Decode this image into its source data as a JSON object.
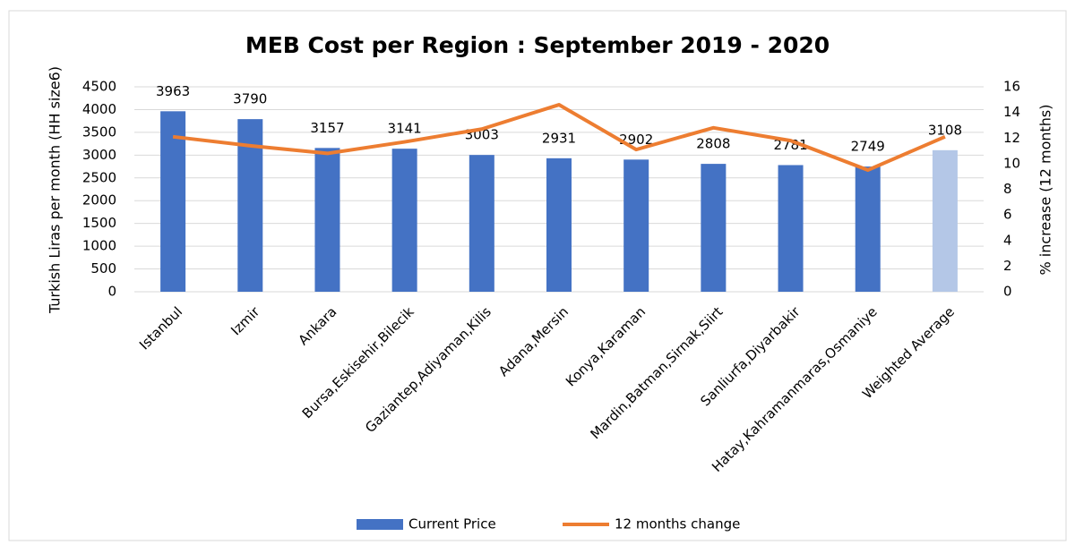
{
  "chart_data": {
    "type": "bar_line",
    "title": "MEB Cost per Region : September 2019 - 2020",
    "y_label": "Turkish Liras per month (HH size6)",
    "y2_label": "% increase (12 months)",
    "categories": [
      "Istanbul",
      "Izmir",
      "Ankara",
      "Bursa,Eskisehir,Bilecik",
      "Gaziantep,Adiyaman,Kilis",
      "Adana,Mersin",
      "Konya,Karaman",
      "Mardin,Batman,Sirnak,Siirt",
      "Sanliurfa,Diyarbakir",
      "Hatay,Kahramanmaras,Osmaniye",
      "Weighted Average"
    ],
    "series": [
      {
        "name": "Current Price",
        "type": "bar",
        "color": "#4472c4",
        "colors": [
          "#4472c4",
          "#4472c4",
          "#4472c4",
          "#4472c4",
          "#4472c4",
          "#4472c4",
          "#4472c4",
          "#4472c4",
          "#4472c4",
          "#4472c4",
          "#b4c7e7"
        ],
        "values": [
          3963,
          3790,
          3157,
          3141,
          3003,
          2931,
          2902,
          2808,
          2781,
          2749,
          3108
        ]
      },
      {
        "name": "12 months change",
        "type": "line",
        "axis": "y2",
        "color": "#ed7d31",
        "values": [
          12.1,
          11.4,
          10.8,
          11.7,
          12.7,
          14.6,
          11.1,
          12.8,
          11.8,
          9.5,
          12.1
        ]
      }
    ],
    "ylim": [
      0,
      4500
    ],
    "yticks": [
      0,
      500,
      1000,
      1500,
      2000,
      2500,
      3000,
      3500,
      4000,
      4500
    ],
    "y2lim": [
      0,
      16
    ],
    "y2ticks": [
      0,
      2,
      4,
      6,
      8,
      10,
      12,
      14,
      16
    ],
    "grid": true,
    "legend": "bottom"
  }
}
